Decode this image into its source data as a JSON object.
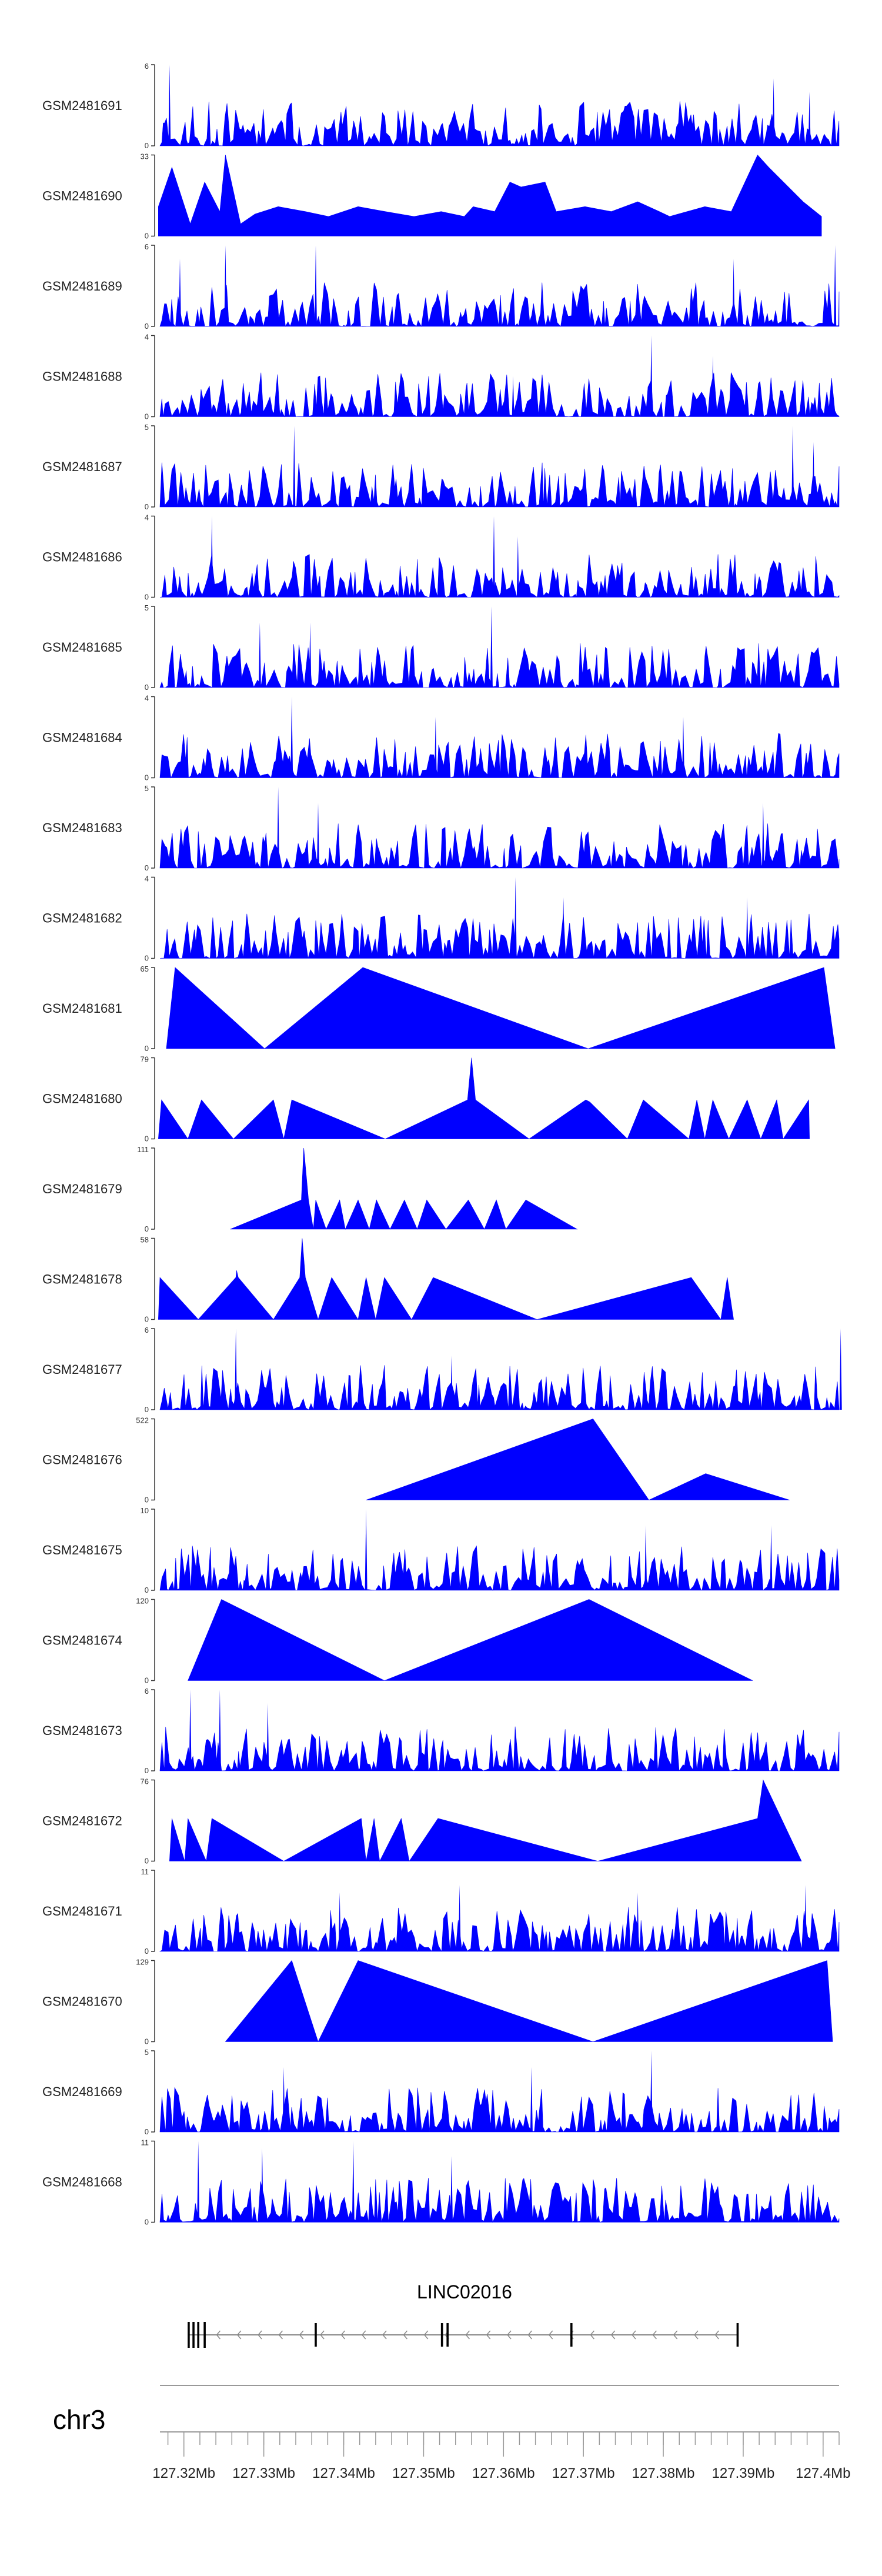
{
  "colors": {
    "signal": "#0000ff",
    "axis": "#333333",
    "gene": "#000000",
    "gene_line": "#888888",
    "ideogram": "#999999"
  },
  "chart_data": {
    "type": "area",
    "genome_track": {
      "chromosome": "chr3",
      "x_range_mb": [
        127.317,
        127.402
      ],
      "tick_labels": [
        "127.32Mb",
        "127.33Mb",
        "127.34Mb",
        "127.35Mb",
        "127.36Mb",
        "127.37Mb",
        "127.38Mb",
        "127.39Mb",
        "127.4Mb"
      ],
      "tick_values_mb": [
        127.32,
        127.33,
        127.34,
        127.35,
        127.36,
        127.37,
        127.38,
        127.39,
        127.4
      ],
      "minor_tick_step_mb": 0.002
    },
    "gene": {
      "name": "LINC02016",
      "start_mb": 127.3206,
      "end_mb": 127.3893,
      "strand": "-",
      "exons_mb": [
        127.3206,
        127.3212,
        127.3218,
        127.3226,
        127.3365,
        127.3523,
        127.353,
        127.3685,
        127.3893
      ]
    },
    "tracks": [
      {
        "name": "GSM2481691",
        "ymax": 6,
        "style": "dense",
        "seed": 11,
        "peaks": [
          [
            127.3182,
            6
          ],
          [
            127.3938,
            5
          ],
          [
            127.3983,
            4
          ]
        ]
      },
      {
        "name": "GSM2481690",
        "ymax": 33,
        "style": "sparse",
        "points": [
          [
            127.3168,
            12
          ],
          [
            127.3185,
            28
          ],
          [
            127.3208,
            5
          ],
          [
            127.3226,
            22
          ],
          [
            127.3245,
            10
          ],
          [
            127.3252,
            33
          ],
          [
            127.3271,
            5
          ],
          [
            127.3289,
            9
          ],
          [
            127.3318,
            12
          ],
          [
            127.3352,
            10
          ],
          [
            127.3381,
            8
          ],
          [
            127.3418,
            12
          ],
          [
            127.3452,
            10
          ],
          [
            127.3488,
            8
          ],
          [
            127.3522,
            10
          ],
          [
            127.3551,
            8
          ],
          [
            127.3562,
            12
          ],
          [
            127.3589,
            10
          ],
          [
            127.3608,
            22
          ],
          [
            127.3622,
            20
          ],
          [
            127.3652,
            22
          ],
          [
            127.3666,
            10
          ],
          [
            127.3702,
            12
          ],
          [
            127.3735,
            10
          ],
          [
            127.3768,
            14
          ],
          [
            127.3795,
            10
          ],
          [
            127.3808,
            8
          ],
          [
            127.3852,
            12
          ],
          [
            127.3885,
            10
          ],
          [
            127.3918,
            33
          ],
          [
            127.3932,
            28
          ],
          [
            127.3975,
            14
          ],
          [
            127.3998,
            8
          ]
        ]
      },
      {
        "name": "GSM2481689",
        "ymax": 6,
        "style": "dense",
        "seed": 23,
        "peaks": [
          [
            127.3195,
            5
          ],
          [
            127.3252,
            6
          ],
          [
            127.3365,
            6
          ],
          [
            127.3888,
            5
          ],
          [
            127.4015,
            6
          ]
        ]
      },
      {
        "name": "GSM2481688",
        "ymax": 4,
        "style": "dense",
        "seed": 37,
        "peaks": [
          [
            127.3612,
            2
          ],
          [
            127.3785,
            4
          ],
          [
            127.3862,
            3
          ]
        ]
      },
      {
        "name": "GSM2481687",
        "ymax": 5,
        "style": "dense",
        "seed": 41,
        "peaks": [
          [
            127.3338,
            5
          ],
          [
            127.3962,
            5
          ],
          [
            127.3988,
            4
          ]
        ]
      },
      {
        "name": "GSM2481686",
        "ymax": 4,
        "style": "dense",
        "seed": 53,
        "peaks": [
          [
            127.3235,
            4
          ],
          [
            127.3588,
            4
          ],
          [
            127.3618,
            3
          ]
        ]
      },
      {
        "name": "GSM2481685",
        "ymax": 5,
        "style": "dense",
        "seed": 67,
        "peaks": [
          [
            127.3295,
            4
          ],
          [
            127.3358,
            4
          ],
          [
            127.3585,
            5
          ]
        ]
      },
      {
        "name": "GSM2481684",
        "ymax": 4,
        "style": "dense",
        "seed": 71,
        "peaks": [
          [
            127.3335,
            4
          ],
          [
            127.3515,
            3
          ],
          [
            127.3825,
            3
          ]
        ]
      },
      {
        "name": "GSM2481683",
        "ymax": 5,
        "style": "dense",
        "seed": 83,
        "peaks": [
          [
            127.3318,
            5
          ],
          [
            127.3368,
            4
          ],
          [
            127.3925,
            4
          ]
        ]
      },
      {
        "name": "GSM2481682",
        "ymax": 4,
        "style": "dense",
        "seed": 97,
        "peaks": [
          [
            127.3615,
            4
          ],
          [
            127.3675,
            3
          ],
          [
            127.3905,
            3
          ]
        ]
      },
      {
        "name": "GSM2481681",
        "ymax": 65,
        "style": "sparse",
        "points": [
          [
            127.3178,
            0
          ],
          [
            127.3189,
            65
          ],
          [
            127.3301,
            0
          ],
          [
            127.3424,
            65
          ],
          [
            127.3706,
            0
          ],
          [
            127.4001,
            65
          ],
          [
            127.4015,
            0
          ]
        ]
      },
      {
        "name": "GSM2481680",
        "ymax": 79,
        "style": "sparse",
        "points": [
          [
            127.3168,
            0
          ],
          [
            127.3172,
            38
          ],
          [
            127.3205,
            0
          ],
          [
            127.3222,
            38
          ],
          [
            127.3262,
            0
          ],
          [
            127.3312,
            38
          ],
          [
            127.3325,
            0
          ],
          [
            127.3335,
            38
          ],
          [
            127.3452,
            0
          ],
          [
            127.3555,
            38
          ],
          [
            127.356,
            79
          ],
          [
            127.3565,
            38
          ],
          [
            127.3632,
            0
          ],
          [
            127.3703,
            38
          ],
          [
            127.3708,
            36
          ],
          [
            127.3755,
            0
          ],
          [
            127.3775,
            38
          ],
          [
            127.3832,
            0
          ],
          [
            127.3842,
            38
          ],
          [
            127.3852,
            0
          ],
          [
            127.3862,
            38
          ],
          [
            127.3882,
            0
          ],
          [
            127.3905,
            38
          ],
          [
            127.3922,
            0
          ],
          [
            127.3942,
            38
          ],
          [
            127.395,
            0
          ],
          [
            127.3982,
            38
          ],
          [
            127.3983,
            0
          ]
        ]
      },
      {
        "name": "GSM2481679",
        "ymax": 111,
        "style": "sparse",
        "points": [
          [
            127.3258,
            0
          ],
          [
            127.3347,
            40
          ],
          [
            127.335,
            111
          ],
          [
            127.3356,
            40
          ],
          [
            127.3362,
            0
          ],
          [
            127.3365,
            40
          ],
          [
            127.3378,
            0
          ],
          [
            127.3395,
            40
          ],
          [
            127.3402,
            0
          ],
          [
            127.3418,
            40
          ],
          [
            127.3432,
            0
          ],
          [
            127.3441,
            40
          ],
          [
            127.3458,
            0
          ],
          [
            127.3476,
            40
          ],
          [
            127.3492,
            0
          ],
          [
            127.3504,
            40
          ],
          [
            127.3528,
            0
          ],
          [
            127.3556,
            40
          ],
          [
            127.3576,
            0
          ],
          [
            127.3591,
            40
          ],
          [
            127.3603,
            0
          ],
          [
            127.3628,
            40
          ],
          [
            127.3692,
            0
          ]
        ]
      },
      {
        "name": "GSM2481678",
        "ymax": 58,
        "style": "sparse",
        "points": [
          [
            127.3168,
            0
          ],
          [
            127.317,
            30
          ],
          [
            127.3218,
            0
          ],
          [
            127.3265,
            30
          ],
          [
            127.3266,
            35
          ],
          [
            127.3268,
            30
          ],
          [
            127.3312,
            0
          ],
          [
            127.3345,
            30
          ],
          [
            127.3348,
            58
          ],
          [
            127.3352,
            30
          ],
          [
            127.3368,
            0
          ],
          [
            127.3385,
            30
          ],
          [
            127.3418,
            0
          ],
          [
            127.3428,
            30
          ],
          [
            127.344,
            0
          ],
          [
            127.3451,
            30
          ],
          [
            127.3485,
            0
          ],
          [
            127.3512,
            30
          ],
          [
            127.3642,
            0
          ],
          [
            127.3835,
            30
          ],
          [
            127.3872,
            0
          ],
          [
            127.388,
            30
          ],
          [
            127.3888,
            0
          ]
        ]
      },
      {
        "name": "GSM2481677",
        "ymax": 6,
        "style": "dense",
        "seed": 101,
        "peaks": [
          [
            127.3265,
            6
          ],
          [
            127.3535,
            4
          ],
          [
            127.4022,
            6
          ]
        ]
      },
      {
        "name": "GSM2481676",
        "ymax": 522,
        "style": "sparse",
        "points": [
          [
            127.3428,
            0
          ],
          [
            127.3712,
            522
          ],
          [
            127.3782,
            0
          ],
          [
            127.3853,
            170
          ],
          [
            127.3958,
            0
          ]
        ]
      },
      {
        "name": "GSM2481675",
        "ymax": 10,
        "style": "dense",
        "seed": 113,
        "peaks": [
          [
            127.3428,
            10
          ],
          [
            127.3778,
            8
          ],
          [
            127.3935,
            8
          ]
        ]
      },
      {
        "name": "GSM2481674",
        "ymax": 120,
        "style": "sparse",
        "points": [
          [
            127.3205,
            0
          ],
          [
            127.3247,
            120
          ],
          [
            127.3451,
            0
          ],
          [
            127.3707,
            120
          ],
          [
            127.3912,
            0
          ]
        ]
      },
      {
        "name": "GSM2481673",
        "ymax": 6,
        "style": "dense",
        "seed": 127,
        "peaks": [
          [
            127.3208,
            6
          ],
          [
            127.3245,
            6
          ],
          [
            127.3305,
            5
          ]
        ]
      },
      {
        "name": "GSM2481672",
        "ymax": 76,
        "style": "sparse",
        "points": [
          [
            127.3182,
            0
          ],
          [
            127.3185,
            40
          ],
          [
            127.3201,
            0
          ],
          [
            127.3205,
            40
          ],
          [
            127.3228,
            0
          ],
          [
            127.3235,
            40
          ],
          [
            127.3325,
            0
          ],
          [
            127.3422,
            40
          ],
          [
            127.3428,
            0
          ],
          [
            127.3438,
            40
          ],
          [
            127.3445,
            0
          ],
          [
            127.3472,
            40
          ],
          [
            127.3482,
            0
          ],
          [
            127.3518,
            40
          ],
          [
            127.3718,
            0
          ],
          [
            127.3918,
            40
          ],
          [
            127.3925,
            76
          ],
          [
            127.3973,
            0
          ]
        ]
      },
      {
        "name": "GSM2481671",
        "ymax": 11,
        "style": "dense",
        "seed": 131,
        "peaks": [
          [
            127.3395,
            8
          ],
          [
            127.3545,
            9
          ],
          [
            127.3768,
            8
          ],
          [
            127.3978,
            9
          ]
        ]
      },
      {
        "name": "GSM2481670",
        "ymax": 129,
        "style": "sparse",
        "points": [
          [
            127.3252,
            0
          ],
          [
            127.3335,
            129
          ],
          [
            127.3368,
            0
          ],
          [
            127.3418,
            129
          ],
          [
            127.3712,
            0
          ],
          [
            127.4005,
            129
          ],
          [
            127.4012,
            0
          ]
        ]
      },
      {
        "name": "GSM2481669",
        "ymax": 5,
        "style": "dense",
        "seed": 139,
        "peaks": [
          [
            127.3325,
            4
          ],
          [
            127.3635,
            4
          ],
          [
            127.3785,
            5
          ]
        ]
      },
      {
        "name": "GSM2481668",
        "ymax": 11,
        "style": "dense",
        "seed": 149,
        "peaks": [
          [
            127.3218,
            11
          ],
          [
            127.3298,
            10
          ],
          [
            127.3412,
            11
          ],
          [
            127.3535,
            9
          ]
        ]
      }
    ]
  }
}
